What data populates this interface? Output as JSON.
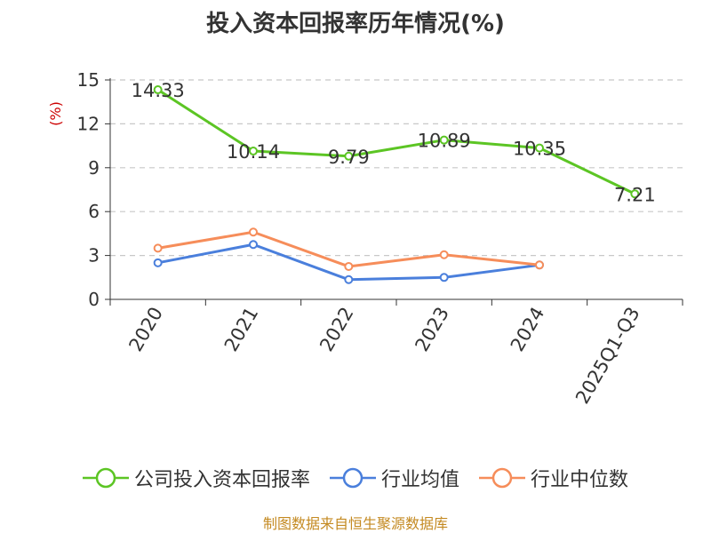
{
  "title": "投入资本回报率历年情况(%)",
  "source_note": "制图数据来自恒生聚源数据库",
  "colors": {
    "company": "#5cc524",
    "industry_avg": "#4a7fdc",
    "industry_median": "#f68d5a",
    "ylabel": "#cc0000",
    "grid": "#c8c8c8",
    "axis": "#333333"
  },
  "chart_data": {
    "type": "line",
    "title": "投入资本回报率历年情况(%)",
    "ylabel": "(%)",
    "xlabel": "",
    "ylim": [
      0,
      15
    ],
    "yticks": [
      0,
      3,
      6,
      9,
      12,
      15
    ],
    "ytick_labels": [
      "0",
      "3",
      "6",
      "9",
      "12",
      "15"
    ],
    "grid": "horizontal dashed",
    "legend_position": "bottom",
    "categories": [
      "2020",
      "2021",
      "2022",
      "2023",
      "2024",
      "2025Q1-Q3"
    ],
    "series": [
      {
        "name": "公司投入资本回报率",
        "values": [
          14.33,
          10.14,
          9.79,
          10.89,
          10.35,
          7.21
        ],
        "data_labels": [
          "14.33",
          "10.14",
          "9.79",
          "10.89",
          "10.35",
          "7.21"
        ],
        "color": "#5cc524"
      },
      {
        "name": "行业均值",
        "values": [
          2.5,
          3.75,
          1.35,
          1.5,
          2.35,
          null
        ],
        "color": "#4a7fdc"
      },
      {
        "name": "行业中位数",
        "values": [
          3.5,
          4.6,
          2.25,
          3.05,
          2.35,
          null
        ],
        "color": "#f68d5a"
      }
    ]
  }
}
